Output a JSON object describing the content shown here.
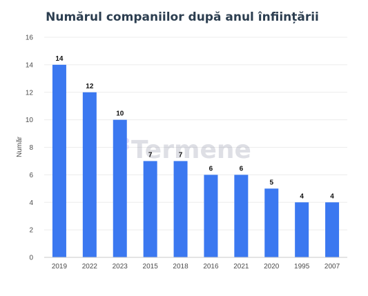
{
  "chart_data": {
    "type": "bar",
    "title": "Numărul companiilor după anul înființării",
    "xlabel": "",
    "ylabel": "Număr",
    "categories": [
      "2019",
      "2022",
      "2023",
      "2015",
      "2018",
      "2016",
      "2021",
      "2020",
      "1995",
      "2007"
    ],
    "values": [
      14,
      12,
      10,
      7,
      7,
      6,
      6,
      5,
      4,
      4
    ],
    "ylim": [
      0,
      16
    ],
    "yticks": [
      0,
      2,
      4,
      6,
      8,
      10,
      12,
      14,
      16
    ],
    "grid": true,
    "legend": "none",
    "bar_color": "#3b78f0"
  },
  "watermark": {
    "text": "Termene",
    "color": "#8a8fa3"
  }
}
